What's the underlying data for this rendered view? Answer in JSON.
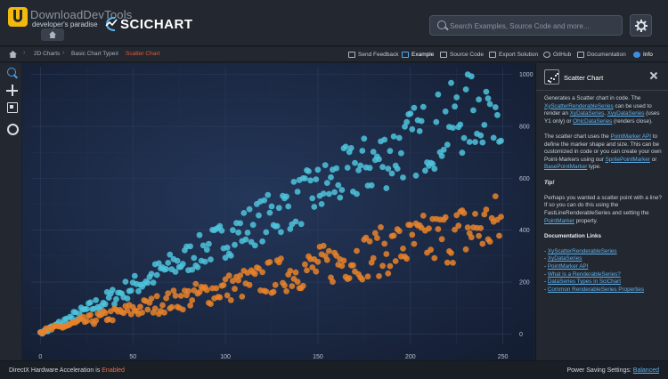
{
  "header": {
    "watermark_title": "DownloadDevTools",
    "watermark_subtitle": "developer's paradise",
    "brand": "SCICHART",
    "search_placeholder": "Search Examples, Source Code and more...",
    "settings_icon": "gear-icon"
  },
  "breadcrumb": {
    "items": [
      "2D Charts",
      "Basic Chart Types",
      "Scatter Chart"
    ],
    "separator": "›",
    "accent_color": "#e05b3b"
  },
  "toolbar": {
    "send_feedback": "Send Feedback",
    "example": "Example",
    "source_code": "Source Code",
    "export_solution": "Export Solution",
    "github": "GitHub",
    "documentation": "Documentation",
    "info": "Info"
  },
  "panel": {
    "title": "Scatter Chart",
    "p1_a": "Generates a Scatter chart in code. The ",
    "p1_link1": "XyScatterRenderableSeries",
    "p1_b": " can be used to render an ",
    "p1_link2": "XyDataSeries",
    "p1_c": ", ",
    "p1_link3": "XyyDataSeries",
    "p1_d": " (uses Y1 only) or ",
    "p1_link4": "OhlcDataSeries",
    "p1_e": " (renders close).",
    "p2_a": "The scatter chart uses the ",
    "p2_link1": "PointMarker API",
    "p2_b": " to define the marker shape and size. This can be customized in code or you can create your own Point-Markers using our ",
    "p2_link2": "SpritePointMarker",
    "p2_c": " or ",
    "p2_link3": "BasePointMarker",
    "p2_d": " type.",
    "tip": "Tip!",
    "p3_a": "Perhaps you wanted a scatter point with a line? If so you can do this using the FastLineRenderableSeries and setting the ",
    "p3_link": "PointMarker",
    "p3_b": " property.",
    "links_heading": "Documentation Links",
    "links": [
      "XyScatterRenderableSeries",
      "XyDataSeries",
      "PointMarker API",
      "What is a RenderableSeries?",
      "DataSeries Types in SciChart",
      "Common RenderableSeries Properties"
    ]
  },
  "status": {
    "left_label": "DirectX Hardware Acceleration is ",
    "left_value": "Enabled",
    "right_label": "Power Saving Settings: ",
    "right_value": "Balanced"
  },
  "chart_data": {
    "type": "scatter",
    "xlim": [
      -5,
      255
    ],
    "ylim": [
      -40,
      1030
    ],
    "x_ticks": [
      0,
      50,
      100,
      150,
      200,
      250
    ],
    "y_ticks": [
      0,
      200,
      400,
      600,
      800,
      1000
    ],
    "y_axis_position": "right",
    "grid": true,
    "background": "#1d2b47",
    "series": [
      {
        "color": "#4fc3dc",
        "approx_slope": 3.6,
        "points": 250
      },
      {
        "color": "#e8822a",
        "approx_slope": 1.6,
        "points": 250
      }
    ]
  }
}
